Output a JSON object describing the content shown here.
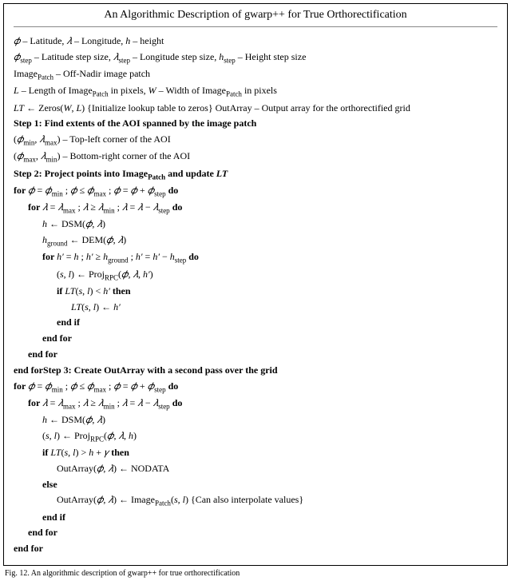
{
  "title": "An Algorithmic Description of gwarp++ for True Orthorectification",
  "caption": "Fig. 12.   An algorithmic description of gwarp++ for true orthorectification",
  "lines": [
    {
      "indent": 0,
      "parts": [
        {
          "t": "𝜙",
          "it": true
        },
        {
          "t": " – Latitude, "
        },
        {
          "t": "𝜆",
          "it": true
        },
        {
          "t": " – Longitude, "
        },
        {
          "t": "h",
          "it": true
        },
        {
          "t": " – height"
        }
      ]
    },
    {
      "indent": 0,
      "parts": [
        {
          "t": "𝜙",
          "it": true
        },
        {
          "t": "step",
          "sub": true
        },
        {
          "t": " – Latitude step size, "
        },
        {
          "t": "𝜆",
          "it": true
        },
        {
          "t": "step",
          "sub": true
        },
        {
          "t": " – Longitude step size, "
        },
        {
          "t": "h",
          "it": true
        },
        {
          "t": "step",
          "sub": true
        },
        {
          "t": " – Height step size"
        }
      ]
    },
    {
      "indent": 0,
      "parts": [
        {
          "t": "Image"
        },
        {
          "t": "Patch",
          "sub": true
        },
        {
          "t": " – Off-Nadir image patch"
        }
      ]
    },
    {
      "indent": 0,
      "parts": [
        {
          "t": "L",
          "it": true
        },
        {
          "t": " – Length of Image"
        },
        {
          "t": "Patch",
          "sub": true
        },
        {
          "t": " in pixels, "
        },
        {
          "t": "W",
          "it": true
        },
        {
          "t": " – Width of Image"
        },
        {
          "t": "Patch",
          "sub": true
        },
        {
          "t": " in pixels"
        }
      ]
    },
    {
      "indent": 0,
      "parts": [
        {
          "t": "LT",
          "it": true
        },
        {
          "t": " ← Zeros("
        },
        {
          "t": "W",
          "it": true
        },
        {
          "t": ", "
        },
        {
          "t": "L",
          "it": true
        },
        {
          "t": ") {Initialize lookup table to zeros} OutArray – Output array for the orthorectified grid"
        }
      ]
    },
    {
      "indent": 0,
      "parts": [
        {
          "t": "Step 1: Find extents of the AOI spanned by the image patch",
          "bold": true
        }
      ]
    },
    {
      "indent": 0,
      "parts": [
        {
          "t": "("
        },
        {
          "t": "𝜙",
          "it": true
        },
        {
          "t": "min",
          "sub": true
        },
        {
          "t": ", "
        },
        {
          "t": "𝜆",
          "it": true
        },
        {
          "t": "max",
          "sub": true
        },
        {
          "t": ") – Top-left corner of the AOI"
        }
      ]
    },
    {
      "indent": 0,
      "parts": [
        {
          "t": "("
        },
        {
          "t": "𝜙",
          "it": true
        },
        {
          "t": "max",
          "sub": true
        },
        {
          "t": ", "
        },
        {
          "t": "𝜆",
          "it": true
        },
        {
          "t": "min",
          "sub": true
        },
        {
          "t": ") – Bottom-right corner of the AOI"
        }
      ]
    },
    {
      "indent": 0,
      "parts": [
        {
          "t": "Step 2: Project points into Image",
          "bold": true
        },
        {
          "t": "Patch",
          "bold": true,
          "sub": true
        },
        {
          "t": " and update ",
          "bold": true
        },
        {
          "t": "LT",
          "bold": true,
          "it": true
        }
      ]
    },
    {
      "indent": 0,
      "parts": [
        {
          "t": "for ",
          "bold": true
        },
        {
          "t": "𝜙",
          "it": true
        },
        {
          "t": " = "
        },
        {
          "t": "𝜙",
          "it": true
        },
        {
          "t": "min",
          "sub": true
        },
        {
          "t": " ;  "
        },
        {
          "t": "𝜙",
          "it": true
        },
        {
          "t": "  ≤ "
        },
        {
          "t": "𝜙",
          "it": true
        },
        {
          "t": "max",
          "sub": true
        },
        {
          "t": " ;  "
        },
        {
          "t": "𝜙",
          "it": true
        },
        {
          "t": "  = "
        },
        {
          "t": "𝜙",
          "it": true
        },
        {
          "t": " + "
        },
        {
          "t": "𝜙",
          "it": true
        },
        {
          "t": "step",
          "sub": true
        },
        {
          "t": " do",
          "bold": true
        }
      ]
    },
    {
      "indent": 1,
      "parts": [
        {
          "t": "for ",
          "bold": true
        },
        {
          "t": "𝜆",
          "it": true
        },
        {
          "t": " = "
        },
        {
          "t": "𝜆",
          "it": true
        },
        {
          "t": "max",
          "sub": true
        },
        {
          "t": " ;  "
        },
        {
          "t": "𝜆",
          "it": true
        },
        {
          "t": "  ≥ "
        },
        {
          "t": "𝜆",
          "it": true
        },
        {
          "t": "min",
          "sub": true
        },
        {
          "t": " ;  "
        },
        {
          "t": "𝜆",
          "it": true
        },
        {
          "t": "  = "
        },
        {
          "t": "𝜆",
          "it": true
        },
        {
          "t": " − "
        },
        {
          "t": "𝜆",
          "it": true
        },
        {
          "t": "step",
          "sub": true
        },
        {
          "t": " do",
          "bold": true
        }
      ]
    },
    {
      "indent": 2,
      "parts": [
        {
          "t": "h",
          "it": true
        },
        {
          "t": " ← DSM("
        },
        {
          "t": "𝜙",
          "it": true
        },
        {
          "t": ", "
        },
        {
          "t": "𝜆",
          "it": true
        },
        {
          "t": ")"
        }
      ]
    },
    {
      "indent": 2,
      "parts": [
        {
          "t": "h",
          "it": true
        },
        {
          "t": "ground",
          "sub": true
        },
        {
          "t": " ← DEM("
        },
        {
          "t": "𝜙",
          "it": true
        },
        {
          "t": ", "
        },
        {
          "t": "𝜆",
          "it": true
        },
        {
          "t": ")"
        }
      ]
    },
    {
      "indent": 2,
      "parts": [
        {
          "t": "for ",
          "bold": true
        },
        {
          "t": "h′",
          "it": true
        },
        {
          "t": " =  "
        },
        {
          "t": "h",
          "it": true
        },
        {
          "t": " ;  "
        },
        {
          "t": "h′",
          "it": true
        },
        {
          "t": " ≥ "
        },
        {
          "t": "h",
          "it": true
        },
        {
          "t": "ground",
          "sub": true
        },
        {
          "t": " ;  "
        },
        {
          "t": "h′",
          "it": true
        },
        {
          "t": " = "
        },
        {
          "t": "h′",
          "it": true
        },
        {
          "t": " − "
        },
        {
          "t": "h",
          "it": true
        },
        {
          "t": "step",
          "sub": true
        },
        {
          "t": " do",
          "bold": true
        }
      ]
    },
    {
      "indent": 3,
      "parts": [
        {
          "t": "("
        },
        {
          "t": "s",
          "it": true
        },
        {
          "t": ", "
        },
        {
          "t": "l",
          "it": true
        },
        {
          "t": ") ← Proj"
        },
        {
          "t": "RPC",
          "sub": true
        },
        {
          "t": "("
        },
        {
          "t": "𝜙",
          "it": true
        },
        {
          "t": ", "
        },
        {
          "t": "𝜆",
          "it": true
        },
        {
          "t": ", "
        },
        {
          "t": "h′",
          "it": true
        },
        {
          "t": ")"
        }
      ]
    },
    {
      "indent": 3,
      "parts": [
        {
          "t": "if ",
          "bold": true
        },
        {
          "t": "LT",
          "it": true
        },
        {
          "t": "("
        },
        {
          "t": "s",
          "it": true
        },
        {
          "t": ", "
        },
        {
          "t": "l",
          "it": true
        },
        {
          "t": ") < "
        },
        {
          "t": "h′",
          "it": true
        },
        {
          "t": " then",
          "bold": true
        }
      ]
    },
    {
      "indent": 4,
      "parts": [
        {
          "t": "LT",
          "it": true
        },
        {
          "t": "("
        },
        {
          "t": "s",
          "it": true
        },
        {
          "t": ", "
        },
        {
          "t": "l",
          "it": true
        },
        {
          "t": ") ← "
        },
        {
          "t": "h′",
          "it": true
        }
      ]
    },
    {
      "indent": 3,
      "parts": [
        {
          "t": "end if",
          "bold": true
        }
      ]
    },
    {
      "indent": 2,
      "parts": [
        {
          "t": "end for",
          "bold": true
        }
      ]
    },
    {
      "indent": 1,
      "parts": [
        {
          "t": "end for",
          "bold": true
        }
      ]
    },
    {
      "indent": 0,
      "parts": [
        {
          "t": "end for",
          "bold": true
        },
        {
          "t": "Step 3: Create OutArray with a second pass over the grid",
          "bold": true
        }
      ]
    },
    {
      "indent": 0,
      "parts": [
        {
          "t": "for ",
          "bold": true
        },
        {
          "t": "𝜙",
          "it": true
        },
        {
          "t": " = "
        },
        {
          "t": "𝜙",
          "it": true
        },
        {
          "t": "min",
          "sub": true
        },
        {
          "t": " ;  "
        },
        {
          "t": "𝜙",
          "it": true
        },
        {
          "t": "  ≤ "
        },
        {
          "t": "𝜙",
          "it": true
        },
        {
          "t": "max",
          "sub": true
        },
        {
          "t": " ;  "
        },
        {
          "t": "𝜙",
          "it": true
        },
        {
          "t": "  = "
        },
        {
          "t": "𝜙",
          "it": true
        },
        {
          "t": " + "
        },
        {
          "t": "𝜙",
          "it": true
        },
        {
          "t": "step",
          "sub": true
        },
        {
          "t": " do",
          "bold": true
        }
      ]
    },
    {
      "indent": 1,
      "parts": [
        {
          "t": "for ",
          "bold": true
        },
        {
          "t": "𝜆",
          "it": true
        },
        {
          "t": " = "
        },
        {
          "t": "𝜆",
          "it": true
        },
        {
          "t": "max",
          "sub": true
        },
        {
          "t": " ;  "
        },
        {
          "t": "𝜆",
          "it": true
        },
        {
          "t": "  ≥ "
        },
        {
          "t": "𝜆",
          "it": true
        },
        {
          "t": "min",
          "sub": true
        },
        {
          "t": " ;  "
        },
        {
          "t": "𝜆",
          "it": true
        },
        {
          "t": "  = "
        },
        {
          "t": "𝜆",
          "it": true
        },
        {
          "t": " − "
        },
        {
          "t": "𝜆",
          "it": true
        },
        {
          "t": "step",
          "sub": true
        },
        {
          "t": " do",
          "bold": true
        }
      ]
    },
    {
      "indent": 2,
      "parts": [
        {
          "t": "h",
          "it": true
        },
        {
          "t": " ← DSM("
        },
        {
          "t": "𝜙",
          "it": true
        },
        {
          "t": ", "
        },
        {
          "t": "𝜆",
          "it": true
        },
        {
          "t": ")"
        }
      ]
    },
    {
      "indent": 2,
      "parts": [
        {
          "t": "("
        },
        {
          "t": "s",
          "it": true
        },
        {
          "t": ", "
        },
        {
          "t": "l",
          "it": true
        },
        {
          "t": ") ← Proj"
        },
        {
          "t": "RPC",
          "sub": true
        },
        {
          "t": "("
        },
        {
          "t": "𝜙",
          "it": true
        },
        {
          "t": ", "
        },
        {
          "t": "𝜆",
          "it": true
        },
        {
          "t": ", "
        },
        {
          "t": "h",
          "it": true
        },
        {
          "t": ")"
        }
      ]
    },
    {
      "indent": 2,
      "parts": [
        {
          "t": "if ",
          "bold": true
        },
        {
          "t": "LT",
          "it": true
        },
        {
          "t": "("
        },
        {
          "t": "s",
          "it": true
        },
        {
          "t": ", "
        },
        {
          "t": "l",
          "it": true
        },
        {
          "t": ") > "
        },
        {
          "t": "h",
          "it": true
        },
        {
          "t": " + "
        },
        {
          "t": "𝛾",
          "it": true
        },
        {
          "t": " then",
          "bold": true
        }
      ]
    },
    {
      "indent": 3,
      "parts": [
        {
          "t": "OutArray("
        },
        {
          "t": "𝜙",
          "it": true
        },
        {
          "t": ", "
        },
        {
          "t": "𝜆",
          "it": true
        },
        {
          "t": ") ← NODATA"
        }
      ]
    },
    {
      "indent": 2,
      "parts": [
        {
          "t": "else",
          "bold": true
        }
      ]
    },
    {
      "indent": 3,
      "parts": [
        {
          "t": "OutArray("
        },
        {
          "t": "𝜙",
          "it": true
        },
        {
          "t": ", "
        },
        {
          "t": "𝜆",
          "it": true
        },
        {
          "t": ") ← Image"
        },
        {
          "t": "Patch",
          "sub": true
        },
        {
          "t": "("
        },
        {
          "t": "s",
          "it": true
        },
        {
          "t": ", "
        },
        {
          "t": "l",
          "it": true
        },
        {
          "t": ") {Can also interpolate values}"
        }
      ]
    },
    {
      "indent": 2,
      "parts": [
        {
          "t": "end if",
          "bold": true
        }
      ]
    },
    {
      "indent": 1,
      "parts": [
        {
          "t": "end for",
          "bold": true
        }
      ]
    },
    {
      "indent": 0,
      "parts": [
        {
          "t": "end for",
          "bold": true
        }
      ]
    }
  ]
}
